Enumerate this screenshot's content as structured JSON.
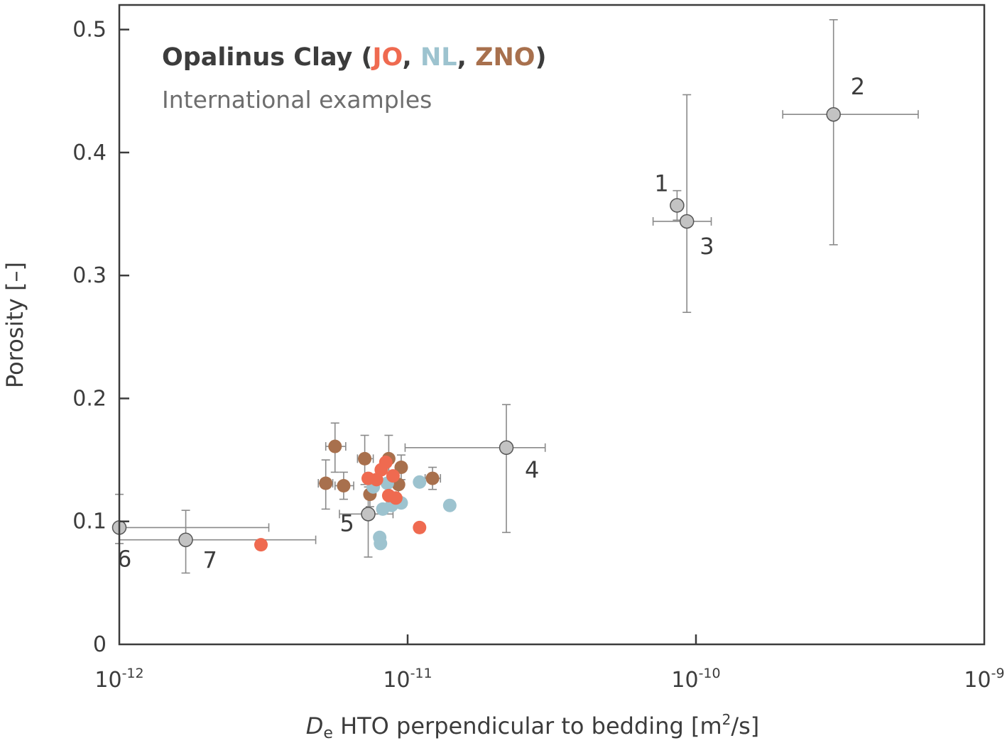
{
  "chart_data": {
    "type": "scatter",
    "x_scale": "log",
    "xlim": [
      1e-12,
      1e-09
    ],
    "ylim": [
      0,
      0.52
    ],
    "grid": false,
    "xlabel": {
      "italic": "D",
      "sub": "e",
      "rest": " HTO perpendicular to bedding [m",
      "sup": "2",
      "tail": "/s]"
    },
    "ylabel": "Porosity [–]",
    "x_ticks": [
      {
        "value": 1e-12,
        "base": "10",
        "exp": "-12"
      },
      {
        "value": 1e-11,
        "base": "10",
        "exp": "-11"
      },
      {
        "value": 1e-10,
        "base": "10",
        "exp": "-10"
      },
      {
        "value": 1e-09,
        "base": "10",
        "exp": "-9"
      }
    ],
    "y_ticks": [
      {
        "value": 0,
        "label": "0"
      },
      {
        "value": 0.1,
        "label": "0.1"
      },
      {
        "value": 0.2,
        "label": "0.2"
      },
      {
        "value": 0.3,
        "label": "0.3"
      },
      {
        "value": 0.4,
        "label": "0.4"
      },
      {
        "value": 0.5,
        "label": "0.5"
      }
    ],
    "legend": {
      "position": "top-left",
      "title_prefix": "Opalinus Clay (",
      "sep1": ", ",
      "sep2": ", ",
      "suffix": ")",
      "subtitle": "International examples"
    },
    "series": [
      {
        "name": "JO",
        "color": "#ef6a50",
        "points": [
          {
            "x": 3.1e-12,
            "y": 0.081
          },
          {
            "x": 1.1e-11,
            "y": 0.095
          },
          {
            "x": 7.3e-12,
            "y": 0.135
          },
          {
            "x": 7.8e-12,
            "y": 0.134
          },
          {
            "x": 8.1e-12,
            "y": 0.142
          },
          {
            "x": 8.4e-12,
            "y": 0.148
          },
          {
            "x": 8.6e-12,
            "y": 0.121
          },
          {
            "x": 8.9e-12,
            "y": 0.137
          },
          {
            "x": 9.1e-12,
            "y": 0.119
          }
        ]
      },
      {
        "name": "NL",
        "color": "#9dc3cf",
        "points": [
          {
            "x": 7.6e-12,
            "y": 0.128
          },
          {
            "x": 8e-12,
            "y": 0.087
          },
          {
            "x": 8.05e-12,
            "y": 0.082
          },
          {
            "x": 8.2e-12,
            "y": 0.11
          },
          {
            "x": 8.5e-12,
            "y": 0.131
          },
          {
            "x": 8.8e-12,
            "y": 0.113
          },
          {
            "x": 9.5e-12,
            "y": 0.115
          },
          {
            "x": 1.1e-11,
            "y": 0.132
          },
          {
            "x": 1.4e-11,
            "y": 0.113
          }
        ]
      },
      {
        "name": "ZNO",
        "color": "#a8704d",
        "points": [
          {
            "x": 5.2e-12,
            "y": 0.131,
            "yerr": [
              0.11,
              0.15
            ],
            "xerr": [
              4.9e-12,
              5.5e-12
            ]
          },
          {
            "x": 5.6e-12,
            "y": 0.161,
            "yerr": [
              0.14,
              0.18
            ],
            "xerr": [
              5.2e-12,
              6.1e-12
            ]
          },
          {
            "x": 6e-12,
            "y": 0.129,
            "yerr": [
              0.118,
              0.14
            ],
            "xerr": [
              5.6e-12,
              6.5e-12
            ]
          },
          {
            "x": 7.1e-12,
            "y": 0.151,
            "yerr": [
              0.13,
              0.17
            ],
            "xerr": [
              6.7e-12,
              7.6e-12
            ]
          },
          {
            "x": 7.4e-12,
            "y": 0.122,
            "yerr": [
              0.112,
              0.132
            ]
          },
          {
            "x": 8.6e-12,
            "y": 0.151,
            "yerr": [
              0.13,
              0.17
            ]
          },
          {
            "x": 9.3e-12,
            "y": 0.13,
            "yerr": [
              0.12,
              0.14
            ]
          },
          {
            "x": 9.5e-12,
            "y": 0.144,
            "yerr": [
              0.134,
              0.154
            ]
          },
          {
            "x": 1.22e-11,
            "y": 0.135,
            "yerr": [
              0.126,
              0.144
            ],
            "xerr": [
              1.15e-11,
              1.3e-11
            ]
          }
        ]
      },
      {
        "name": "International examples",
        "color": "#c3c3c3",
        "points": [
          {
            "label": "1",
            "x": 8.6e-11,
            "y": 0.357,
            "yerr": [
              0.345,
              0.369
            ]
          },
          {
            "label": "2",
            "x": 3e-10,
            "y": 0.431,
            "yerr": [
              0.325,
              0.508
            ],
            "xerr": [
              2e-10,
              5.9e-10
            ]
          },
          {
            "label": "3",
            "x": 9.3e-11,
            "y": 0.344,
            "yerr": [
              0.27,
              0.447
            ],
            "xerr": [
              7.1e-11,
              1.13e-10
            ]
          },
          {
            "label": "4",
            "x": 2.2e-11,
            "y": 0.16,
            "yerr": [
              0.091,
              0.195
            ],
            "xerr": [
              9.8e-12,
              3e-11
            ]
          },
          {
            "label": "5",
            "x": 7.3e-12,
            "y": 0.106,
            "yerr": [
              0.071,
              0.128
            ],
            "xerr": [
              5.8e-12,
              8.9e-12
            ]
          },
          {
            "label": "6",
            "x": 1e-12,
            "y": 0.095,
            "yerr": [
              0.082,
              0.122
            ],
            "xerr": [
              1e-12,
              3.3e-12
            ]
          },
          {
            "label": "7",
            "x": 1.7e-12,
            "y": 0.085,
            "yerr": [
              0.058,
              0.109
            ],
            "xerr": [
              1e-12,
              4.8e-12
            ]
          }
        ]
      }
    ]
  }
}
